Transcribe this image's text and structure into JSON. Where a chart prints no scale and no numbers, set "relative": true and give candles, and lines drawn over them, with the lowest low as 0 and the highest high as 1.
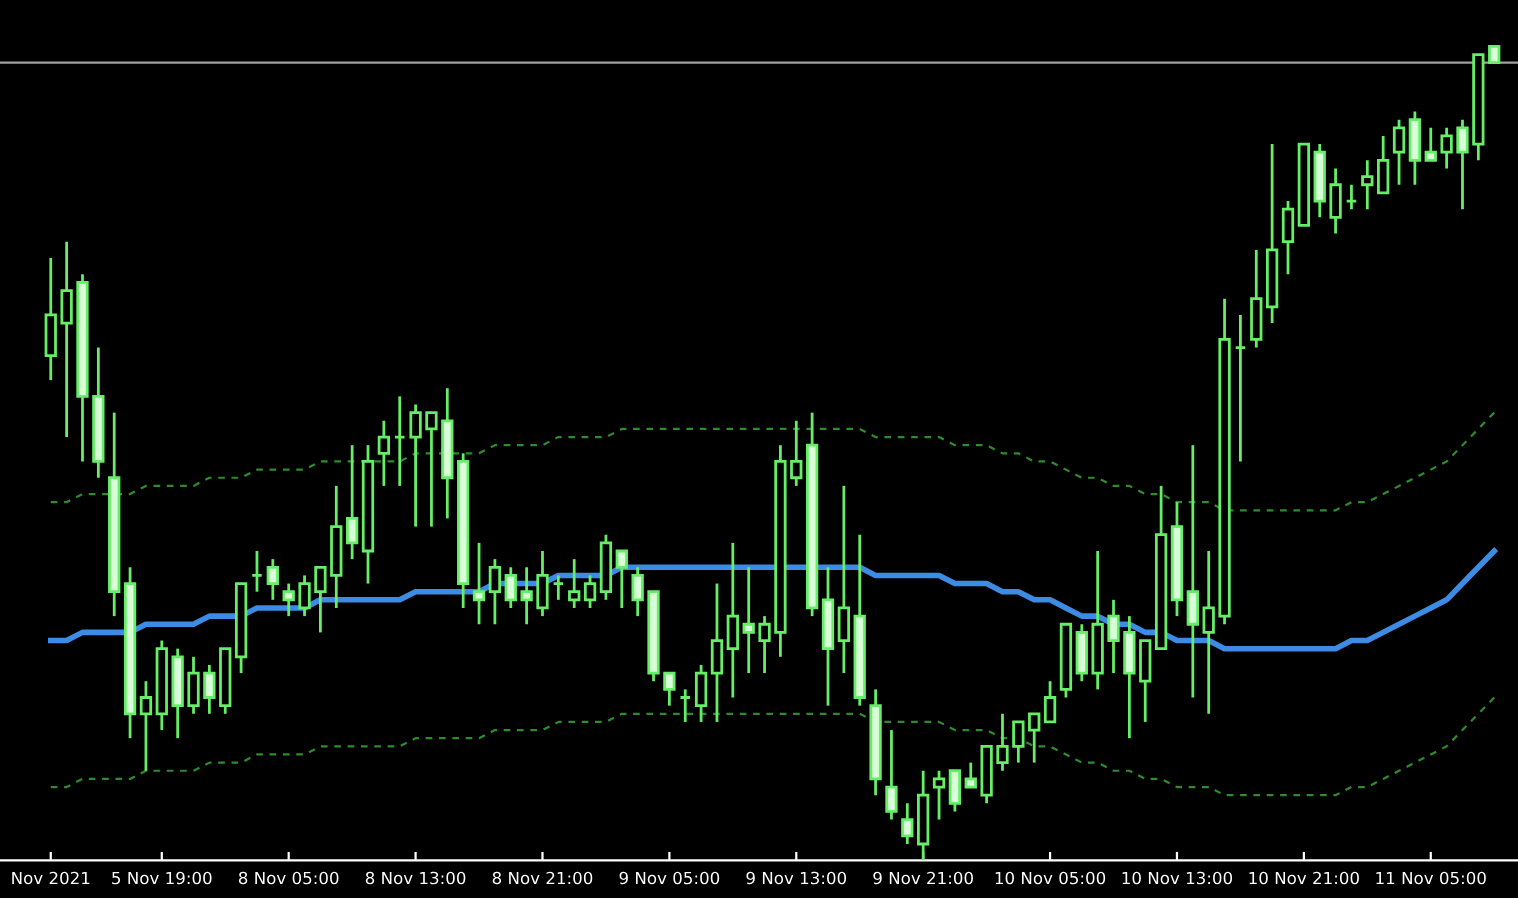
{
  "chart_data": {
    "type": "candlestick",
    "relative": true,
    "color": "#66ee66",
    "colors": [
      "#000000",
      "#000000",
      "#d8ffd8",
      "#d8ffd8",
      "#d8ffd8",
      "#d8ffd8",
      "#000000",
      "#000000",
      "#d8ffd8",
      "#000000",
      "#d8ffd8",
      "#000000",
      "#000000",
      "#66ee66",
      "#d8ffd8",
      "#d8ffd8",
      "#000000",
      "#000000",
      "#000000",
      "#d8ffd8",
      "#000000",
      "#000000",
      "#66ee66",
      "#000000",
      "#000000",
      "#d8ffd8",
      "#d8ffd8",
      "#d8ffd8",
      "#000000",
      "#d8ffd8",
      "#d8ffd8",
      "#000000",
      "#66ee66",
      "#000000",
      "#000000",
      "#000000",
      "#d8ffd8",
      "#d8ffd8",
      "#d8ffd8",
      "#d8ffd8",
      "#66ee66",
      "#000000",
      "#000000",
      "#000000",
      "#d8ffd8",
      "#000000",
      "#000000",
      "#000000",
      "#d8ffd8",
      "#d8ffd8",
      "#000000",
      "#d8ffd8",
      "#d8ffd8",
      "#d8ffd8",
      "#d8ffd8",
      "#000000",
      "#000000",
      "#d8ffd8",
      "#d8ffd8",
      "#000000",
      "#000000",
      "#000000",
      "#000000",
      "#000000",
      "#000000",
      "#d8ffd8",
      "#000000",
      "#d8ffd8",
      "#d8ffd8",
      "#000000",
      "#000000",
      "#d8ffd8",
      "#d8ffd8",
      "#000000",
      "#000000",
      "#66ee66",
      "#000000",
      "#000000",
      "#000000",
      "#000000",
      "#d8ffd8",
      "#000000",
      "#66ee66",
      "#000000",
      "#000000",
      "#000000",
      "#d8ffd8",
      "#d8ffd8",
      "#000000",
      "#d8ffd8",
      "#000000",
      "#d8ffd8"
    ],
    "categories": [
      "Nov 2021",
      null,
      null,
      null,
      null,
      null,
      null,
      "5 Nov 19:00",
      null,
      null,
      null,
      null,
      null,
      null,
      null,
      "8 Nov 05:00",
      null,
      null,
      null,
      null,
      null,
      null,
      null,
      "8 Nov 13:00",
      null,
      null,
      null,
      null,
      null,
      null,
      null,
      "8 Nov 21:00",
      null,
      null,
      null,
      null,
      null,
      null,
      null,
      "9 Nov 05:00",
      null,
      null,
      null,
      null,
      null,
      null,
      null,
      "9 Nov 13:00",
      null,
      null,
      null,
      null,
      null,
      null,
      null,
      "9 Nov 21:00",
      null,
      null,
      null,
      null,
      null,
      null,
      null,
      "10 Nov 05:00",
      null,
      null,
      null,
      null,
      null,
      null,
      null,
      "10 Nov 13:00",
      null,
      null,
      null,
      null,
      null,
      null,
      null,
      "10 Nov 21:00",
      null,
      null,
      null,
      null,
      null,
      null,
      null,
      "11 Nov 05:00",
      null,
      null,
      null,
      null
    ],
    "ohlc": [
      [
        0.62,
        0.74,
        0.59,
        0.67
      ],
      [
        0.66,
        0.76,
        0.52,
        0.7
      ],
      [
        0.71,
        0.72,
        0.49,
        0.57
      ],
      [
        0.57,
        0.63,
        0.47,
        0.49
      ],
      [
        0.47,
        0.55,
        0.3,
        0.33
      ],
      [
        0.34,
        0.36,
        0.15,
        0.18
      ],
      [
        0.18,
        0.22,
        0.11,
        0.2
      ],
      [
        0.18,
        0.27,
        0.16,
        0.26
      ],
      [
        0.25,
        0.26,
        0.15,
        0.19
      ],
      [
        0.19,
        0.25,
        0.18,
        0.23
      ],
      [
        0.23,
        0.24,
        0.18,
        0.2
      ],
      [
        0.19,
        0.26,
        0.18,
        0.26
      ],
      [
        0.25,
        0.34,
        0.23,
        0.34
      ],
      [
        0.35,
        0.38,
        0.33,
        0.35
      ],
      [
        0.36,
        0.37,
        0.32,
        0.34
      ],
      [
        0.33,
        0.34,
        0.3,
        0.32
      ],
      [
        0.31,
        0.35,
        0.3,
        0.34
      ],
      [
        0.33,
        0.36,
        0.28,
        0.36
      ],
      [
        0.35,
        0.46,
        0.31,
        0.41
      ],
      [
        0.42,
        0.51,
        0.37,
        0.39
      ],
      [
        0.38,
        0.51,
        0.34,
        0.49
      ],
      [
        0.5,
        0.54,
        0.46,
        0.52
      ],
      [
        0.52,
        0.57,
        0.46,
        0.52
      ],
      [
        0.52,
        0.56,
        0.41,
        0.55
      ],
      [
        0.53,
        0.55,
        0.41,
        0.55
      ],
      [
        0.54,
        0.58,
        0.42,
        0.47
      ],
      [
        0.49,
        0.5,
        0.31,
        0.34
      ],
      [
        0.33,
        0.39,
        0.29,
        0.32
      ],
      [
        0.33,
        0.37,
        0.29,
        0.36
      ],
      [
        0.35,
        0.36,
        0.31,
        0.32
      ],
      [
        0.33,
        0.36,
        0.29,
        0.32
      ],
      [
        0.31,
        0.38,
        0.3,
        0.35
      ],
      [
        0.34,
        0.35,
        0.32,
        0.34
      ],
      [
        0.32,
        0.37,
        0.31,
        0.33
      ],
      [
        0.32,
        0.35,
        0.31,
        0.34
      ],
      [
        0.33,
        0.4,
        0.32,
        0.39
      ],
      [
        0.38,
        0.38,
        0.31,
        0.36
      ],
      [
        0.35,
        0.36,
        0.3,
        0.32
      ],
      [
        0.33,
        0.33,
        0.22,
        0.23
      ],
      [
        0.23,
        0.23,
        0.19,
        0.21
      ],
      [
        0.2,
        0.21,
        0.17,
        0.2
      ],
      [
        0.19,
        0.24,
        0.17,
        0.23
      ],
      [
        0.23,
        0.34,
        0.17,
        0.27
      ],
      [
        0.26,
        0.39,
        0.2,
        0.3
      ],
      [
        0.29,
        0.36,
        0.23,
        0.28
      ],
      [
        0.27,
        0.3,
        0.23,
        0.29
      ],
      [
        0.28,
        0.51,
        0.25,
        0.49
      ],
      [
        0.47,
        0.54,
        0.46,
        0.49
      ],
      [
        0.51,
        0.55,
        0.3,
        0.31
      ],
      [
        0.32,
        0.36,
        0.19,
        0.26
      ],
      [
        0.27,
        0.46,
        0.23,
        0.31
      ],
      [
        0.3,
        0.4,
        0.19,
        0.2
      ],
      [
        0.19,
        0.21,
        0.08,
        0.1
      ],
      [
        0.09,
        0.16,
        0.05,
        0.06
      ],
      [
        0.05,
        0.07,
        0.02,
        0.03
      ],
      [
        0.02,
        0.11,
        0,
        0.08
      ],
      [
        0.09,
        0.11,
        0.05,
        0.1
      ],
      [
        0.11,
        0.11,
        0.06,
        0.07
      ],
      [
        0.1,
        0.12,
        0.09,
        0.09
      ],
      [
        0.08,
        0.14,
        0.07,
        0.14
      ],
      [
        0.12,
        0.18,
        0.11,
        0.14
      ],
      [
        0.14,
        0.17,
        0.12,
        0.17
      ],
      [
        0.16,
        0.18,
        0.12,
        0.18
      ],
      [
        0.17,
        0.22,
        0.17,
        0.2
      ],
      [
        0.21,
        0.29,
        0.2,
        0.29
      ],
      [
        0.28,
        0.29,
        0.22,
        0.23
      ],
      [
        0.23,
        0.38,
        0.21,
        0.29
      ],
      [
        0.3,
        0.32,
        0.23,
        0.27
      ],
      [
        0.28,
        0.3,
        0.15,
        0.23
      ],
      [
        0.22,
        0.27,
        0.17,
        0.27
      ],
      [
        0.26,
        0.46,
        0.26,
        0.4
      ],
      [
        0.41,
        0.44,
        0.3,
        0.32
      ],
      [
        0.33,
        0.51,
        0.2,
        0.29
      ],
      [
        0.28,
        0.38,
        0.18,
        0.31
      ],
      [
        0.3,
        0.69,
        0.29,
        0.64
      ],
      [
        0.63,
        0.67,
        0.49,
        0.63
      ],
      [
        0.64,
        0.75,
        0.63,
        0.69
      ],
      [
        0.68,
        0.88,
        0.66,
        0.75
      ],
      [
        0.76,
        0.81,
        0.72,
        0.8
      ],
      [
        0.78,
        0.88,
        0.78,
        0.88
      ],
      [
        0.87,
        0.88,
        0.79,
        0.81
      ],
      [
        0.79,
        0.85,
        0.77,
        0.83
      ],
      [
        0.81,
        0.83,
        0.8,
        0.81
      ],
      [
        0.83,
        0.86,
        0.8,
        0.84
      ],
      [
        0.82,
        0.89,
        0.82,
        0.86
      ],
      [
        0.87,
        0.91,
        0.83,
        0.9
      ],
      [
        0.91,
        0.92,
        0.83,
        0.86
      ],
      [
        0.87,
        0.9,
        0.86,
        0.86
      ],
      [
        0.87,
        0.9,
        0.85,
        0.89
      ],
      [
        0.9,
        0.91,
        0.8,
        0.87
      ],
      [
        0.88,
        0.99,
        0.86,
        0.99
      ],
      [
        1,
        1,
        0.98,
        0.98
      ]
    ],
    "series": [
      {
        "type": "line",
        "color": "#3c8ce6",
        "line_style": "solid",
        "values": [
          0.27,
          0.27,
          0.28,
          0.28,
          0.28,
          0.28,
          0.29,
          0.29,
          0.29,
          0.29,
          0.3,
          0.3,
          0.3,
          0.31,
          0.31,
          0.31,
          0.31,
          0.32,
          0.32,
          0.32,
          0.32,
          0.32,
          0.32,
          0.33,
          0.33,
          0.33,
          0.33,
          0.33,
          0.34,
          0.34,
          0.34,
          0.34,
          0.35,
          0.35,
          0.35,
          0.35,
          0.36,
          0.36,
          0.36,
          0.36,
          0.36,
          0.36,
          0.36,
          0.36,
          0.36,
          0.36,
          0.36,
          0.36,
          0.36,
          0.36,
          0.36,
          0.36,
          0.35,
          0.35,
          0.35,
          0.35,
          0.35,
          0.34,
          0.34,
          0.34,
          0.33,
          0.33,
          0.32,
          0.32,
          0.31,
          0.3,
          0.3,
          0.29,
          0.29,
          0.28,
          0.28,
          0.27,
          0.27,
          0.27,
          0.26,
          0.26,
          0.26,
          0.26,
          0.26,
          0.26,
          0.26,
          0.26,
          0.27,
          0.27,
          0.28,
          0.29,
          0.3,
          0.31,
          0.32,
          0.34,
          0.36,
          0.38
        ]
      },
      {
        "type": "line",
        "color": "#2e8b2e",
        "line_style": "dashed",
        "values": [
          0.44,
          0.44,
          0.45,
          0.45,
          0.45,
          0.45,
          0.46,
          0.46,
          0.46,
          0.46,
          0.47,
          0.47,
          0.47,
          0.48,
          0.48,
          0.48,
          0.48,
          0.49,
          0.49,
          0.49,
          0.49,
          0.49,
          0.49,
          0.5,
          0.5,
          0.5,
          0.5,
          0.5,
          0.51,
          0.51,
          0.51,
          0.51,
          0.52,
          0.52,
          0.52,
          0.52,
          0.53,
          0.53,
          0.53,
          0.53,
          0.53,
          0.53,
          0.53,
          0.53,
          0.53,
          0.53,
          0.53,
          0.53,
          0.53,
          0.53,
          0.53,
          0.53,
          0.52,
          0.52,
          0.52,
          0.52,
          0.52,
          0.51,
          0.51,
          0.51,
          0.5,
          0.5,
          0.49,
          0.49,
          0.48,
          0.47,
          0.47,
          0.46,
          0.46,
          0.45,
          0.45,
          0.44,
          0.44,
          0.44,
          0.43,
          0.43,
          0.43,
          0.43,
          0.43,
          0.43,
          0.43,
          0.43,
          0.44,
          0.44,
          0.45,
          0.46,
          0.47,
          0.48,
          0.49,
          0.51,
          0.53,
          0.55
        ]
      },
      {
        "type": "line",
        "color": "#2e8b2e",
        "line_style": "dashed",
        "values": [
          0.09,
          0.09,
          0.1,
          0.1,
          0.1,
          0.1,
          0.11,
          0.11,
          0.11,
          0.11,
          0.12,
          0.12,
          0.12,
          0.13,
          0.13,
          0.13,
          0.13,
          0.14,
          0.14,
          0.14,
          0.14,
          0.14,
          0.14,
          0.15,
          0.15,
          0.15,
          0.15,
          0.15,
          0.16,
          0.16,
          0.16,
          0.16,
          0.17,
          0.17,
          0.17,
          0.17,
          0.18,
          0.18,
          0.18,
          0.18,
          0.18,
          0.18,
          0.18,
          0.18,
          0.18,
          0.18,
          0.18,
          0.18,
          0.18,
          0.18,
          0.18,
          0.18,
          0.17,
          0.17,
          0.17,
          0.17,
          0.17,
          0.16,
          0.16,
          0.16,
          0.15,
          0.15,
          0.14,
          0.14,
          0.13,
          0.12,
          0.12,
          0.11,
          0.11,
          0.1,
          0.1,
          0.09,
          0.09,
          0.09,
          0.08,
          0.08,
          0.08,
          0.08,
          0.08,
          0.08,
          0.08,
          0.08,
          0.09,
          0.09,
          0.1,
          0.11,
          0.12,
          0.13,
          0.14,
          0.16,
          0.18,
          0.2
        ]
      }
    ],
    "ref_lines": [
      {
        "axis": "y",
        "value": 0.98,
        "color": "#a0a0a0",
        "line_style": "solid"
      }
    ]
  }
}
